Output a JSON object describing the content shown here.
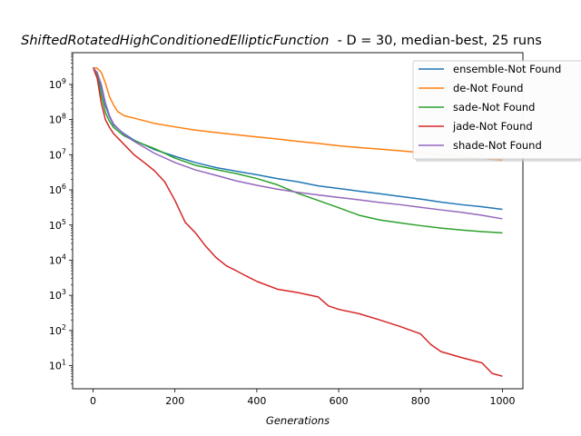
{
  "chart_data": {
    "type": "line",
    "title_italic": "ShiftedRotatedHighConditionedEllipticFunction",
    "title_rest": "  - D = 30, median-best, 25 runs",
    "xlabel": "Generations",
    "ylabel": "",
    "y_scale": "log",
    "xlim": [
      -50,
      1050
    ],
    "ylim": [
      2.2,
      8000000000
    ],
    "x_ticks": [
      0,
      200,
      400,
      600,
      800,
      1000
    ],
    "x_tick_labels": [
      "0",
      "200",
      "400",
      "600",
      "800",
      "1000"
    ],
    "y_tick_exponents": [
      1,
      2,
      3,
      4,
      5,
      6,
      7,
      8,
      9
    ],
    "grid": false,
    "legend_position": "top-right",
    "series": [
      {
        "name": "ensemble-Not Found",
        "color": "#1f77b4",
        "x": [
          0,
          10,
          20,
          30,
          40,
          50,
          75,
          100,
          150,
          200,
          250,
          300,
          400,
          450,
          500,
          550,
          600,
          650,
          700,
          750,
          800,
          850,
          900,
          950,
          1000
        ],
        "y": [
          3000000000,
          2000000000,
          800000000,
          250000000,
          120000000,
          70000000,
          40000000,
          26000000,
          14000000,
          9000000,
          6000000,
          4300000,
          2700000,
          2100000,
          1700000,
          1300000,
          1100000,
          920000,
          780000,
          650000,
          550000,
          450000,
          380000,
          330000,
          280000
        ]
      },
      {
        "name": "de-Not Found",
        "color": "#ff7f0e",
        "x": [
          0,
          10,
          20,
          30,
          40,
          50,
          60,
          75,
          100,
          150,
          200,
          250,
          300,
          350,
          400,
          450,
          500,
          550,
          600,
          650,
          700,
          750,
          800,
          850,
          900,
          950,
          1000
        ],
        "y": [
          3000000000,
          2900000000,
          2200000000,
          1100000000,
          450000000,
          260000000,
          170000000,
          130000000,
          110000000,
          78000000,
          62000000,
          50000000,
          43000000,
          37000000,
          32000000,
          28000000,
          24000000,
          21000000,
          18000000,
          16000000,
          14500000,
          13000000,
          11500000,
          10000000,
          8800000,
          7800000,
          7000000
        ]
      },
      {
        "name": "sade-Not Found",
        "color": "#2ca02c",
        "x": [
          0,
          10,
          20,
          30,
          40,
          50,
          75,
          100,
          150,
          200,
          250,
          300,
          350,
          400,
          450,
          500,
          550,
          600,
          650,
          700,
          750,
          800,
          850,
          900,
          950,
          1000
        ],
        "y": [
          3000000000,
          1800000000,
          500000000,
          160000000,
          90000000,
          60000000,
          35000000,
          25000000,
          15000000,
          8000000,
          5000000,
          3800000,
          2900000,
          2100000,
          1400000,
          800000,
          500000,
          310000,
          190000,
          140000,
          115000,
          96000,
          82000,
          72000,
          65000,
          60000
        ]
      },
      {
        "name": "jade-Not Found",
        "color": "#d62728",
        "x": [
          0,
          10,
          20,
          30,
          40,
          50,
          75,
          100,
          125,
          150,
          175,
          200,
          225,
          250,
          275,
          300,
          325,
          350,
          375,
          400,
          450,
          500,
          550,
          575,
          600,
          650,
          700,
          750,
          800,
          825,
          850,
          900,
          950,
          975,
          1000
        ],
        "y": [
          3000000000,
          1500000000,
          300000000,
          100000000,
          60000000,
          40000000,
          20000000,
          10000000,
          6000000,
          3500000,
          1700000,
          500000,
          120000,
          60000,
          25000,
          12000,
          7000,
          5000,
          3500,
          2500,
          1500,
          1200,
          900,
          500,
          400,
          300,
          200,
          130,
          80,
          40,
          25,
          17,
          12,
          6,
          5
        ]
      },
      {
        "name": "shade-Not Found",
        "color": "#9467bd",
        "x": [
          0,
          10,
          20,
          30,
          40,
          50,
          75,
          100,
          150,
          200,
          250,
          300,
          350,
          400,
          450,
          500,
          550,
          600,
          650,
          700,
          750,
          800,
          850,
          900,
          950,
          1000
        ],
        "y": [
          3000000000,
          2200000000,
          1000000000,
          300000000,
          130000000,
          75000000,
          38000000,
          24000000,
          11000000,
          6000000,
          3700000,
          2600000,
          1800000,
          1350000,
          1050000,
          850000,
          720000,
          610000,
          520000,
          440000,
          380000,
          320000,
          270000,
          230000,
          190000,
          150000
        ]
      }
    ]
  }
}
